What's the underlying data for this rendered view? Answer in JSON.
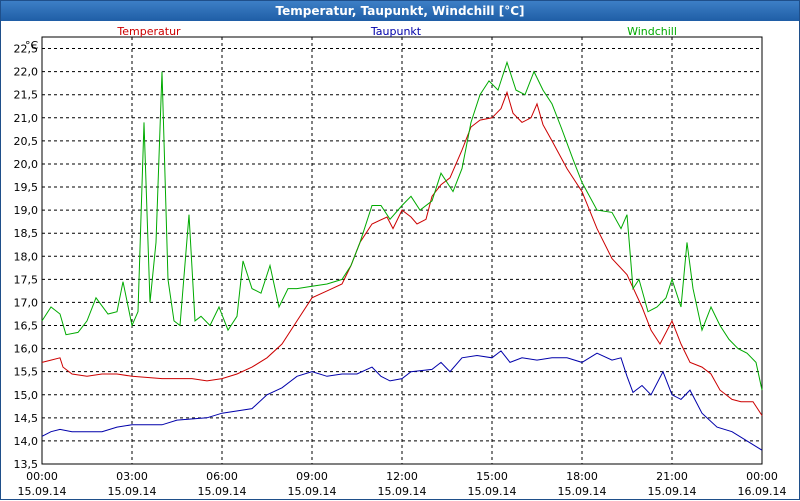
{
  "window": {
    "title": "Temperatur, Taupunkt, Windchill [°C]"
  },
  "chart_data": {
    "type": "line",
    "title": "Temperatur, Taupunkt, Windchill [°C]",
    "ylabel": "°C",
    "ylim": [
      13.5,
      22.75
    ],
    "y_ticks": [
      "13,5",
      "14,0",
      "14,5",
      "15,0",
      "15,5",
      "16,0",
      "16,5",
      "17,0",
      "17,5",
      "18,0",
      "18,5",
      "19,0",
      "19,5",
      "20,0",
      "20,5",
      "21,0",
      "21,5",
      "22,0",
      "22,5"
    ],
    "xlim": [
      0,
      24
    ],
    "x_ticks": [
      {
        "time": "00:00",
        "date": "15.09.14"
      },
      {
        "time": "03:00",
        "date": "15.09.14"
      },
      {
        "time": "06:00",
        "date": "15.09.14"
      },
      {
        "time": "09:00",
        "date": "15.09.14"
      },
      {
        "time": "12:00",
        "date": "15.09.14"
      },
      {
        "time": "15:00",
        "date": "15.09.14"
      },
      {
        "time": "18:00",
        "date": "15.09.14"
      },
      {
        "time": "21:00",
        "date": "15.09.14"
      },
      {
        "time": "00:00",
        "date": "16.09.14"
      }
    ],
    "grid": true,
    "series": [
      {
        "name": "Temperatur",
        "color": "#cc0000",
        "points": [
          [
            0,
            15.7
          ],
          [
            0.3,
            15.75
          ],
          [
            0.6,
            15.8
          ],
          [
            0.7,
            15.6
          ],
          [
            1.0,
            15.45
          ],
          [
            1.5,
            15.4
          ],
          [
            2.0,
            15.45
          ],
          [
            2.5,
            15.45
          ],
          [
            3.0,
            15.4
          ],
          [
            4.0,
            15.35
          ],
          [
            5.0,
            15.35
          ],
          [
            5.5,
            15.3
          ],
          [
            6.0,
            15.35
          ],
          [
            6.5,
            15.45
          ],
          [
            7.0,
            15.6
          ],
          [
            7.5,
            15.8
          ],
          [
            8.0,
            16.1
          ],
          [
            8.5,
            16.6
          ],
          [
            9.0,
            17.1
          ],
          [
            9.5,
            17.25
          ],
          [
            10.0,
            17.4
          ],
          [
            10.3,
            17.8
          ],
          [
            10.6,
            18.3
          ],
          [
            11.0,
            18.7
          ],
          [
            11.5,
            18.85
          ],
          [
            11.7,
            18.6
          ],
          [
            12.0,
            19.0
          ],
          [
            12.3,
            18.85
          ],
          [
            12.5,
            18.7
          ],
          [
            12.8,
            18.8
          ],
          [
            13.0,
            19.3
          ],
          [
            13.3,
            19.55
          ],
          [
            13.6,
            19.7
          ],
          [
            14.0,
            20.3
          ],
          [
            14.3,
            20.8
          ],
          [
            14.6,
            20.95
          ],
          [
            15.0,
            21.0
          ],
          [
            15.3,
            21.2
          ],
          [
            15.5,
            21.55
          ],
          [
            15.7,
            21.1
          ],
          [
            16.0,
            20.9
          ],
          [
            16.3,
            21.0
          ],
          [
            16.5,
            21.3
          ],
          [
            16.7,
            20.85
          ],
          [
            17.0,
            20.5
          ],
          [
            17.5,
            19.9
          ],
          [
            18.0,
            19.4
          ],
          [
            18.5,
            18.6
          ],
          [
            19.0,
            17.95
          ],
          [
            19.5,
            17.6
          ],
          [
            20.0,
            16.9
          ],
          [
            20.3,
            16.4
          ],
          [
            20.6,
            16.1
          ],
          [
            21.0,
            16.6
          ],
          [
            21.3,
            16.1
          ],
          [
            21.6,
            15.7
          ],
          [
            22.0,
            15.6
          ],
          [
            22.3,
            15.45
          ],
          [
            22.6,
            15.1
          ],
          [
            23.0,
            14.9
          ],
          [
            23.3,
            14.85
          ],
          [
            23.7,
            14.85
          ],
          [
            24.0,
            14.55
          ]
        ]
      },
      {
        "name": "Taupunkt",
        "color": "#0000aa",
        "points": [
          [
            0,
            14.1
          ],
          [
            0.3,
            14.2
          ],
          [
            0.6,
            14.25
          ],
          [
            1.0,
            14.2
          ],
          [
            2.0,
            14.2
          ],
          [
            2.5,
            14.3
          ],
          [
            3.0,
            14.35
          ],
          [
            4.0,
            14.35
          ],
          [
            4.5,
            14.45
          ],
          [
            5.5,
            14.5
          ],
          [
            6.0,
            14.6
          ],
          [
            7.0,
            14.7
          ],
          [
            7.5,
            15.0
          ],
          [
            8.0,
            15.15
          ],
          [
            8.5,
            15.4
          ],
          [
            9.0,
            15.5
          ],
          [
            9.5,
            15.4
          ],
          [
            10.0,
            15.45
          ],
          [
            10.5,
            15.45
          ],
          [
            11.0,
            15.6
          ],
          [
            11.3,
            15.4
          ],
          [
            11.6,
            15.3
          ],
          [
            12.0,
            15.35
          ],
          [
            12.3,
            15.5
          ],
          [
            13.0,
            15.55
          ],
          [
            13.3,
            15.7
          ],
          [
            13.6,
            15.5
          ],
          [
            14.0,
            15.8
          ],
          [
            14.5,
            15.85
          ],
          [
            15.0,
            15.8
          ],
          [
            15.3,
            15.95
          ],
          [
            15.6,
            15.7
          ],
          [
            16.0,
            15.8
          ],
          [
            16.5,
            15.75
          ],
          [
            17.0,
            15.8
          ],
          [
            17.5,
            15.8
          ],
          [
            18.0,
            15.7
          ],
          [
            18.5,
            15.9
          ],
          [
            19.0,
            15.75
          ],
          [
            19.3,
            15.8
          ],
          [
            19.5,
            15.4
          ],
          [
            19.7,
            15.05
          ],
          [
            20.0,
            15.2
          ],
          [
            20.3,
            15.0
          ],
          [
            20.7,
            15.5
          ],
          [
            21.0,
            15.0
          ],
          [
            21.3,
            14.9
          ],
          [
            21.6,
            15.1
          ],
          [
            22.0,
            14.6
          ],
          [
            22.5,
            14.3
          ],
          [
            23.0,
            14.2
          ],
          [
            23.5,
            14.0
          ],
          [
            24.0,
            13.8
          ]
        ]
      },
      {
        "name": "Windchill",
        "color": "#00aa00",
        "points": [
          [
            0,
            16.6
          ],
          [
            0.3,
            16.9
          ],
          [
            0.6,
            16.75
          ],
          [
            0.8,
            16.3
          ],
          [
            1.2,
            16.35
          ],
          [
            1.5,
            16.6
          ],
          [
            1.8,
            17.1
          ],
          [
            2.2,
            16.75
          ],
          [
            2.5,
            16.8
          ],
          [
            2.7,
            17.45
          ],
          [
            3.0,
            16.5
          ],
          [
            3.2,
            16.8
          ],
          [
            3.4,
            20.9
          ],
          [
            3.6,
            17.0
          ],
          [
            3.8,
            18.3
          ],
          [
            4.0,
            22.0
          ],
          [
            4.2,
            17.5
          ],
          [
            4.4,
            16.6
          ],
          [
            4.6,
            16.5
          ],
          [
            4.9,
            18.9
          ],
          [
            5.1,
            16.6
          ],
          [
            5.3,
            16.7
          ],
          [
            5.6,
            16.5
          ],
          [
            5.9,
            16.9
          ],
          [
            6.2,
            16.4
          ],
          [
            6.5,
            16.7
          ],
          [
            6.7,
            17.9
          ],
          [
            7.0,
            17.3
          ],
          [
            7.3,
            17.2
          ],
          [
            7.6,
            17.8
          ],
          [
            7.9,
            16.9
          ],
          [
            8.2,
            17.3
          ],
          [
            8.5,
            17.3
          ],
          [
            9.0,
            17.35
          ],
          [
            9.5,
            17.4
          ],
          [
            10.0,
            17.5
          ],
          [
            10.3,
            17.8
          ],
          [
            10.6,
            18.3
          ],
          [
            11.0,
            19.1
          ],
          [
            11.3,
            19.1
          ],
          [
            11.6,
            18.8
          ],
          [
            12.0,
            19.1
          ],
          [
            12.3,
            19.3
          ],
          [
            12.6,
            19.0
          ],
          [
            13.0,
            19.2
          ],
          [
            13.3,
            19.8
          ],
          [
            13.7,
            19.4
          ],
          [
            14.0,
            19.9
          ],
          [
            14.3,
            20.9
          ],
          [
            14.6,
            21.5
          ],
          [
            14.9,
            21.8
          ],
          [
            15.2,
            21.6
          ],
          [
            15.5,
            22.2
          ],
          [
            15.8,
            21.6
          ],
          [
            16.1,
            21.5
          ],
          [
            16.4,
            22.0
          ],
          [
            16.7,
            21.6
          ],
          [
            17.0,
            21.3
          ],
          [
            17.3,
            20.8
          ],
          [
            17.7,
            20.1
          ],
          [
            18.0,
            19.6
          ],
          [
            18.5,
            19.0
          ],
          [
            19.0,
            18.95
          ],
          [
            19.3,
            18.6
          ],
          [
            19.5,
            18.9
          ],
          [
            19.7,
            17.3
          ],
          [
            19.9,
            17.5
          ],
          [
            20.2,
            16.8
          ],
          [
            20.5,
            16.9
          ],
          [
            20.8,
            17.1
          ],
          [
            21.0,
            17.5
          ],
          [
            21.3,
            16.9
          ],
          [
            21.5,
            18.3
          ],
          [
            21.7,
            17.3
          ],
          [
            22.0,
            16.4
          ],
          [
            22.3,
            16.9
          ],
          [
            22.6,
            16.5
          ],
          [
            22.9,
            16.2
          ],
          [
            23.2,
            16.0
          ],
          [
            23.5,
            15.9
          ],
          [
            23.8,
            15.7
          ],
          [
            24.0,
            15.1
          ]
        ]
      }
    ]
  }
}
